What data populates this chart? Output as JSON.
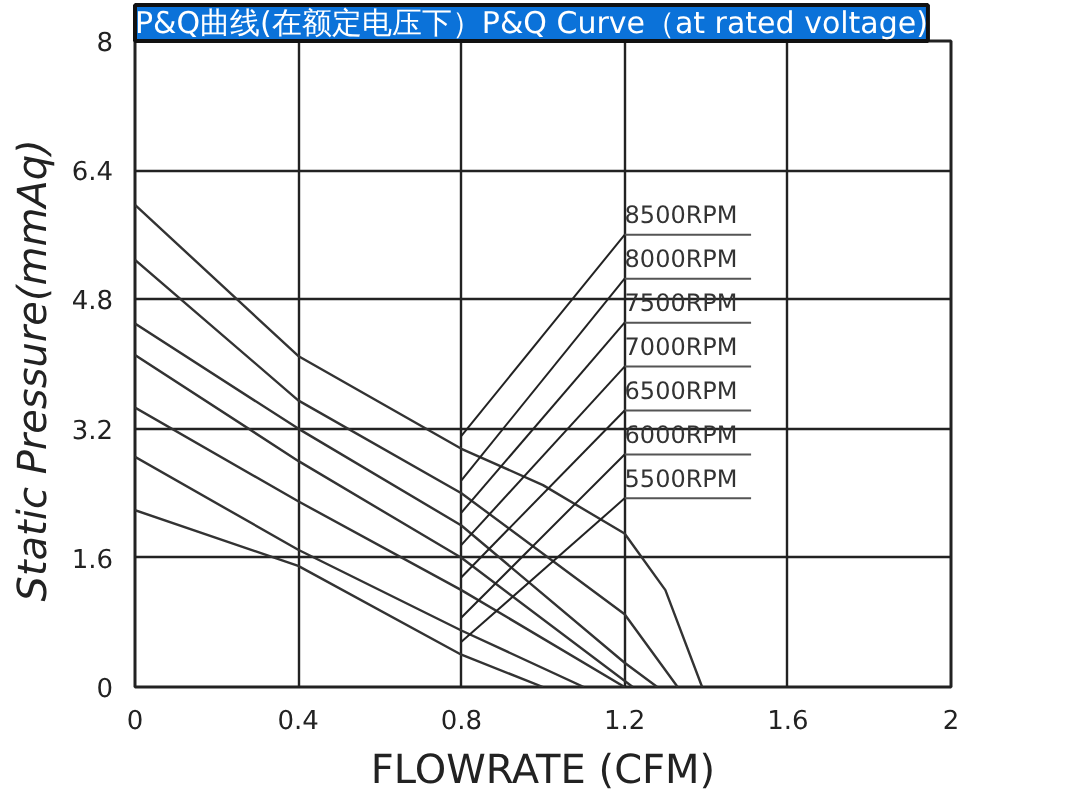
{
  "chart_data": {
    "type": "line",
    "title": "P&Q曲线(在额定电压下）P&Q Curve（at rated voltage)",
    "xlabel": "FLOWRATE (CFM)",
    "ylabel": "Static  Pressure(mmAq)",
    "xlim": [
      0,
      2
    ],
    "ylim": [
      0,
      8
    ],
    "xticks": [
      0,
      0.4,
      0.8,
      1.2,
      1.6,
      2
    ],
    "yticks": [
      0,
      1.6,
      3.2,
      4.8,
      6.4,
      8
    ],
    "grid": true,
    "legend": false,
    "marker": "none",
    "line_style": "solid",
    "series": [
      {
        "name": "8500RPM",
        "color": "#333333",
        "x": [
          0,
          0.4,
          0.8,
          1.0,
          1.2,
          1.3,
          1.39
        ],
        "values": [
          5.97,
          4.1,
          2.95,
          2.5,
          1.9,
          1.2,
          0
        ]
      },
      {
        "name": "8000RPM",
        "color": "#333333",
        "x": [
          0,
          0.4,
          0.8,
          1.2,
          1.33
        ],
        "values": [
          5.29,
          3.55,
          2.4,
          0.9,
          0
        ]
      },
      {
        "name": "7500RPM",
        "color": "#333333",
        "x": [
          0,
          0.4,
          0.8,
          1.2,
          1.28
        ],
        "values": [
          4.5,
          3.2,
          2.0,
          0.3,
          0
        ]
      },
      {
        "name": "7000RPM",
        "color": "#333333",
        "x": [
          0,
          0.4,
          0.8,
          1.22
        ],
        "values": [
          4.11,
          2.8,
          1.6,
          0
        ]
      },
      {
        "name": "6500RPM",
        "color": "#333333",
        "x": [
          0,
          0.4,
          0.8,
          1.2
        ],
        "values": [
          3.46,
          2.3,
          1.2,
          0
        ]
      },
      {
        "name": "6000RPM",
        "color": "#333333",
        "x": [
          0,
          0.4,
          0.8,
          1.1
        ],
        "values": [
          2.85,
          1.7,
          0.7,
          0
        ]
      },
      {
        "name": "5500RPM",
        "color": "#333333",
        "x": [
          0,
          0.4,
          0.8,
          1.0
        ],
        "values": [
          2.19,
          1.5,
          0.4,
          0
        ]
      }
    ]
  }
}
